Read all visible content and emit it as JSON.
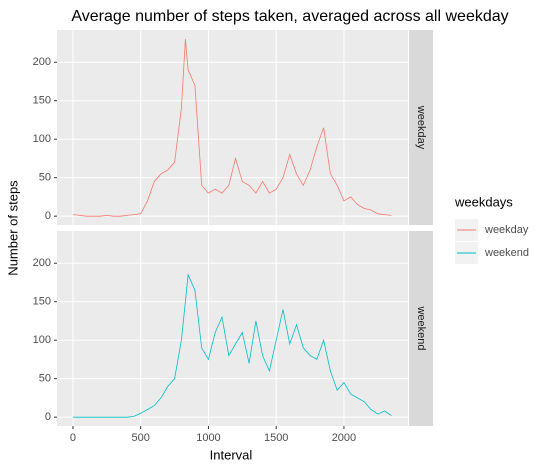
{
  "chart_data": {
    "type": "line",
    "title": "Average number of steps taken, averaged across all weekday",
    "x_label": "Interval",
    "y_label": "Number of steps",
    "legend_title": "weekdays",
    "x": [
      0,
      50,
      100,
      150,
      200,
      250,
      300,
      350,
      400,
      450,
      500,
      550,
      600,
      650,
      700,
      750,
      800,
      830,
      850,
      900,
      950,
      1000,
      1050,
      1100,
      1150,
      1200,
      1250,
      1300,
      1350,
      1400,
      1450,
      1500,
      1550,
      1600,
      1650,
      1700,
      1750,
      1800,
      1850,
      1900,
      1950,
      2000,
      2050,
      2100,
      2150,
      2200,
      2250,
      2300,
      2350
    ],
    "series": [
      {
        "name": "weekday",
        "color": "#F8766D",
        "values": [
          2,
          1,
          0,
          0,
          0,
          1,
          0,
          0,
          1,
          2,
          3,
          20,
          45,
          55,
          60,
          70,
          140,
          230,
          190,
          170,
          40,
          30,
          35,
          30,
          40,
          75,
          45,
          40,
          30,
          45,
          30,
          35,
          50,
          80,
          55,
          40,
          60,
          90,
          115,
          55,
          40,
          20,
          25,
          15,
          10,
          8,
          3,
          2,
          1
        ]
      },
      {
        "name": "weekend",
        "color": "#00BFC4",
        "values": [
          0,
          0,
          0,
          0,
          0,
          0,
          0,
          0,
          0,
          1,
          5,
          10,
          15,
          25,
          40,
          50,
          100,
          150,
          185,
          165,
          90,
          75,
          110,
          130,
          80,
          95,
          110,
          70,
          125,
          80,
          60,
          100,
          140,
          95,
          120,
          90,
          80,
          75,
          100,
          60,
          35,
          45,
          30,
          25,
          20,
          10,
          4,
          8,
          2
        ]
      }
    ],
    "xlim": [
      -117.75,
      2472.75
    ],
    "xticks": [
      0,
      500,
      1000,
      1500,
      2000
    ],
    "ylim": [
      -11.5,
      241.9
    ],
    "yticks": [
      0,
      50,
      100,
      150,
      200
    ],
    "grid": true,
    "legend": "right"
  }
}
